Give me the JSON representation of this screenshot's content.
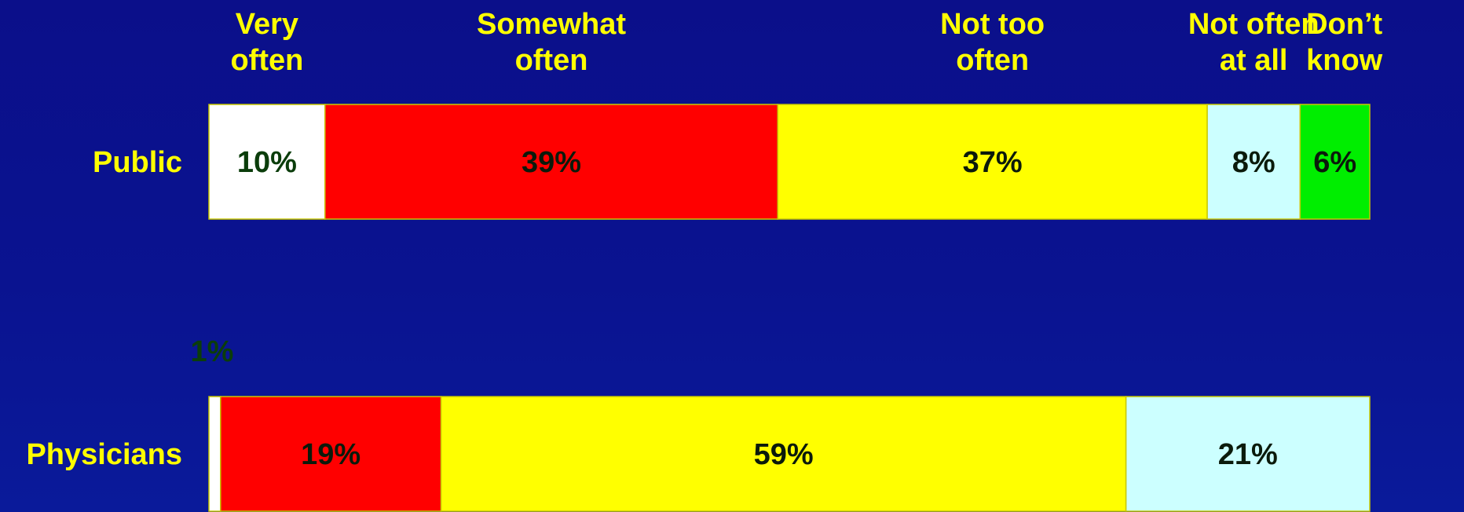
{
  "chart_data": {
    "type": "bar",
    "orientation": "horizontal-stacked",
    "title": "",
    "xlabel": "",
    "ylabel": "",
    "xlim": [
      0,
      100
    ],
    "categories": [
      "Public",
      "Physicians"
    ],
    "series": [
      {
        "name": "Very often",
        "name_lines": [
          "Very",
          "often"
        ],
        "color": "#ffffff",
        "label_color": "#0b3d0b",
        "values": [
          10,
          1
        ],
        "labels": [
          "10%",
          "1%"
        ]
      },
      {
        "name": "Somewhat often",
        "name_lines": [
          "Somewhat",
          "often"
        ],
        "color": "#ff0000",
        "label_color": "#0b1a0b",
        "values": [
          39,
          19
        ],
        "labels": [
          "39%",
          "19%"
        ]
      },
      {
        "name": "Not too often",
        "name_lines": [
          "Not too",
          "often"
        ],
        "color": "#ffff00",
        "label_color": "#0b1a0b",
        "values": [
          37,
          59
        ],
        "labels": [
          "37%",
          "59%"
        ]
      },
      {
        "name": "Not often at all",
        "name_lines": [
          "Not often",
          "at all"
        ],
        "color": "#ccffff",
        "label_color": "#0b1a0b",
        "values": [
          8,
          21
        ],
        "labels": [
          "8%",
          "21%"
        ]
      },
      {
        "name": "Don't know",
        "name_lines": [
          "Don’t",
          "know"
        ],
        "color": "#00ee00",
        "label_color": "#0b1a0b",
        "values": [
          6,
          0
        ],
        "labels": [
          "6%",
          ""
        ]
      }
    ],
    "outside_labels": [
      {
        "category": "Physicians",
        "series": "Very often",
        "text": "1%",
        "color": "#0b3d0b"
      }
    ],
    "legend": "top"
  }
}
